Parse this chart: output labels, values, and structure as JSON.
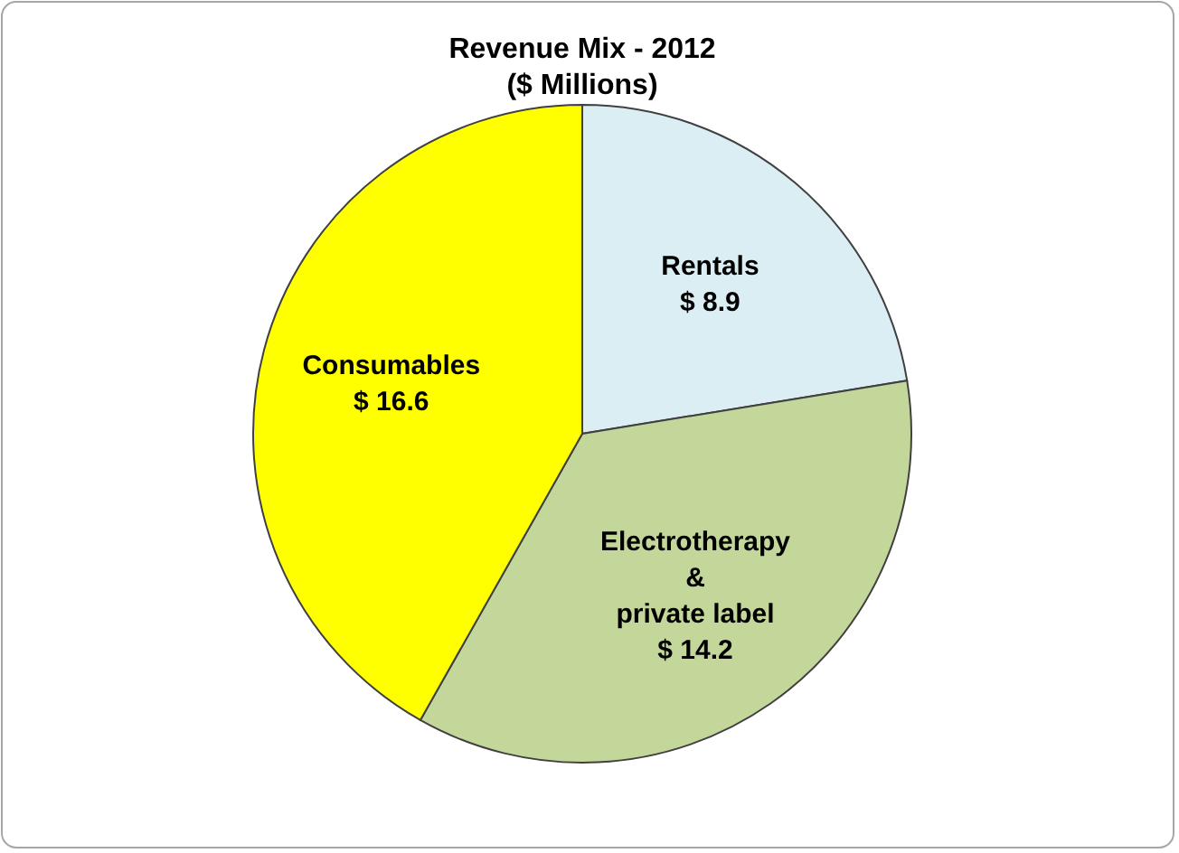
{
  "chart_data": {
    "type": "pie",
    "title": "Revenue Mix - 2012",
    "subtitle": "($ Millions)",
    "categories": [
      "Rentals",
      "Electrotherapy & private label",
      "Consumables"
    ],
    "values": [
      8.9,
      14.2,
      16.6
    ],
    "colors": [
      "#dbeef4",
      "#c4d79b",
      "#ffff00"
    ],
    "value_labels": [
      "$ 8.9",
      "$ 14.2",
      "$ 16.6"
    ]
  }
}
